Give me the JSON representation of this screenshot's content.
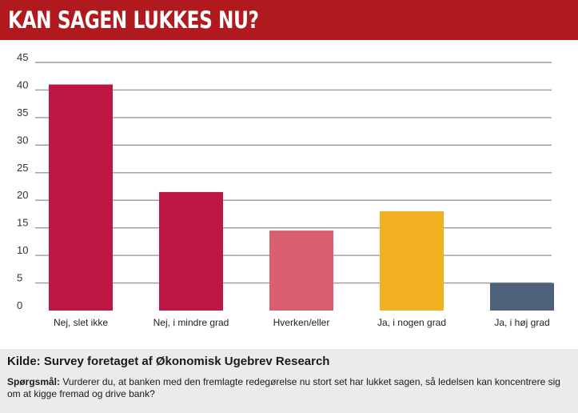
{
  "header": {
    "title": "KAN SAGEN LUKKES NU?"
  },
  "chart_data": {
    "type": "bar",
    "title": "KAN SAGEN LUKKES NU?",
    "categories": [
      "Nej, slet ikke",
      "Nej, i mindre grad",
      "Hverken/eller",
      "Ja, i nogen grad",
      "Ja, i høj grad"
    ],
    "values": [
      41,
      21.5,
      14.5,
      18,
      5
    ],
    "colors": [
      "#be1743",
      "#be1743",
      "#d95f6e",
      "#f1b022",
      "#4d627a"
    ],
    "ylim": [
      0,
      45
    ],
    "yticks": [
      0,
      5,
      10,
      15,
      20,
      25,
      30,
      35,
      40,
      45
    ],
    "xlabel": "",
    "ylabel": "",
    "grid": true,
    "legend": "none"
  },
  "footer": {
    "source": "Kilde: Survey foretaget af Økonomisk Ugebrev Research",
    "question_label": "Spørgsmål:",
    "question_text": " Vurderer du, at banken med den fremlagte redegørelse nu stort set har lukket sagen, så ledelsen kan koncentrere sig om at kigge fremad og drive bank?"
  }
}
